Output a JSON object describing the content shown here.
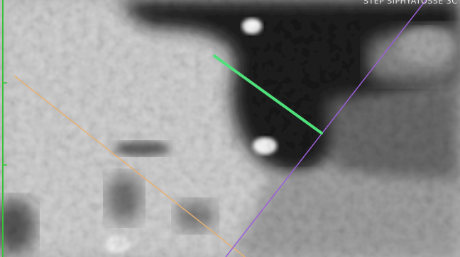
{
  "viewer": {
    "overlay_label": "STEP SIPHYATOSSE 3C",
    "colors": {
      "tissue_light": "#d0d0d0",
      "tissue_mid": "#a9a9a9",
      "dark_region": "#2a2a2a",
      "measurement_green": "#4ee07a",
      "crosshair_purple": "#9b5fd8",
      "crosshair_orange": "#e8b070",
      "ruler_green": "#37c23a"
    },
    "icons": {
      "measurement": "measurement-line",
      "crosshair": "reference-line"
    }
  }
}
